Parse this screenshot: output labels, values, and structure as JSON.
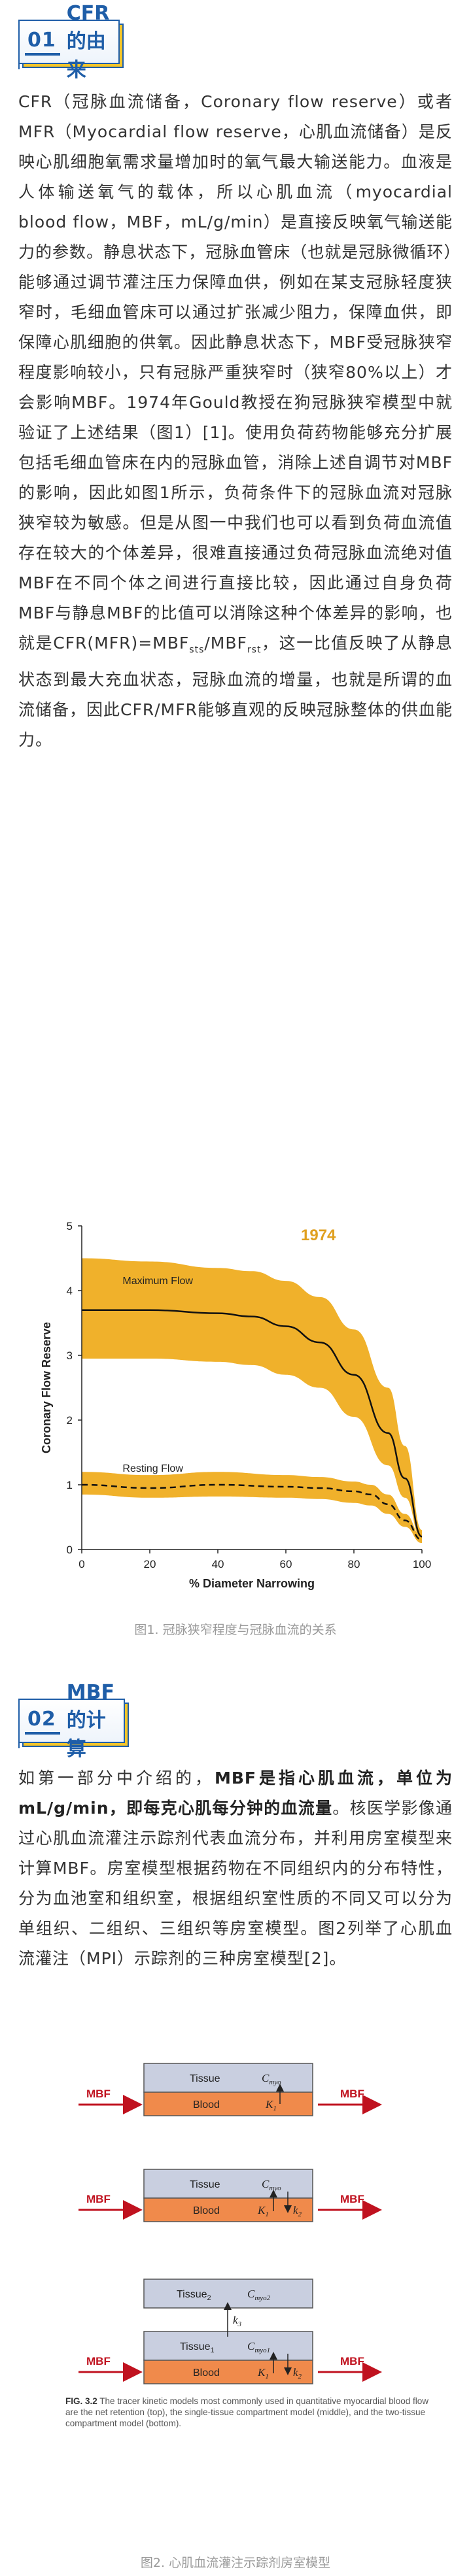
{
  "section1": {
    "number": "01",
    "title": "CFR的由来",
    "para": "CFR（冠脉血流储备，Coronary flow reserve）或者MFR（Myocardial flow reserve，心肌血流储备）是反映心肌细胞氧需求量增加时的氧气最大输送能力。血液是人体输送氧气的载体，所以心肌血流（myocardial blood flow，MBF，mL/g/min）是直接反映氧气输送能力的参数。静息状态下，冠脉血管床（也就是冠脉微循环）能够通过调节灌注压力保障血供，例如在某支冠脉轻度狭窄时，毛细血管床可以通过扩张减少阻力，保障血供，即保障心肌细胞的供氧。因此静息状态下，MBF受冠脉狭窄程度影响较小，只有冠脉严重狭窄时（狭窄80%以上）才会影响MBF。1974年Gould教授在狗冠脉狭窄模型中就验证了上述结果（图1）[1]。使用负荷药物能够充分扩展包括毛细血管床在内的冠脉血管，消除上述自调节对MBF的影响，因此如图1所示，负荷条件下的冠脉血流对冠脉狭窄较为敏感。但是从图一中我们也可以看到负荷血流值存在较大的个体差异，很难直接通过负荷冠脉血流绝对值MBF在不同个体之间进行直接比较，因此通过自身负荷MBF与静息MBF的比值可以消除这种个体差异的影响，也就是CFR(MFR)=MBF",
    "para_sub1": "sts",
    "para_mid": "/MBF",
    "para_sub2": "rst",
    "para_tail": "，这一比值反映了从静息状态到最大充血状态，冠脉血流的增量，也就是所谓的血流储备，因此CFR/MFR能够直观的反映冠脉整体的供血能力。"
  },
  "figure1": {
    "caption": "图1. 冠脉狭窄程度与冠脉血流的关系",
    "chart_data": {
      "type": "line",
      "title": "1974",
      "xlabel": "% Diameter Narrowing",
      "ylabel": "Coronary Flow Reserve",
      "xlim": [
        0,
        100
      ],
      "ylim": [
        0,
        5
      ],
      "xticks": [
        "0",
        "20",
        "40",
        "60",
        "80",
        "100"
      ],
      "yticks": [
        "0",
        "1",
        "2",
        "3",
        "4",
        "5"
      ],
      "grid": false,
      "annotations": [
        "Maximum Flow",
        "Resting Flow"
      ],
      "series": [
        {
          "name": "Maximum Flow",
          "style": "solid",
          "x": [
            0,
            20,
            40,
            50,
            60,
            70,
            80,
            90,
            95,
            100
          ],
          "y": [
            3.7,
            3.7,
            3.65,
            3.6,
            3.45,
            3.2,
            2.7,
            1.8,
            1.1,
            0.2
          ],
          "band_upper": [
            4.5,
            4.45,
            4.35,
            4.3,
            4.15,
            3.9,
            3.4,
            2.5,
            1.6,
            0.3
          ],
          "band_lower": [
            2.95,
            2.95,
            2.9,
            2.85,
            2.7,
            2.5,
            2.05,
            1.3,
            0.8,
            0.15
          ]
        },
        {
          "name": "Resting Flow",
          "style": "dashed",
          "x": [
            0,
            20,
            40,
            60,
            70,
            80,
            85,
            90,
            95,
            100
          ],
          "y": [
            1.0,
            0.95,
            1.0,
            0.97,
            0.95,
            0.9,
            0.85,
            0.7,
            0.45,
            0.15
          ],
          "band_upper": [
            1.2,
            1.15,
            1.2,
            1.15,
            1.12,
            1.05,
            1.0,
            0.85,
            0.55,
            0.2
          ],
          "band_lower": [
            0.85,
            0.8,
            0.82,
            0.8,
            0.78,
            0.72,
            0.68,
            0.55,
            0.35,
            0.1
          ]
        }
      ],
      "colors": {
        "band": "#f0b12b",
        "line": "#111111"
      }
    }
  },
  "section2": {
    "number": "02",
    "title": "MBF的计算",
    "para_lead": "如第一部分中介绍的，",
    "para_bold": "MBF是指心肌血流，单位为mL/g/min，即每克心肌每分钟的血流量",
    "para_rest": "。核医学影像通过心肌血流灌注示踪剂代表血流分布，并利用房室模型来计算MBF。房室模型根据药物在不同组织内的分布特性，分为血池室和组织室，根据组织室性质的不同又可以分为单组织、二组织、三组织等房室模型。图2列举了心肌血流灌注（MPI）示踪剂的三种房室模型[2]。"
  },
  "figure2": {
    "arrow_label": "MBF",
    "tissue": "Tissue",
    "tissue1": "Tissue",
    "tissue1_sub": "1",
    "tissue2": "Tissue",
    "tissue2_sub": "2",
    "blood": "Blood",
    "cmyo": "C",
    "cmyo_sub": "myo",
    "cmyo1_sub": "myo1",
    "cmyo2_sub": "myo2",
    "k1": "K",
    "k1_sub": "1",
    "k2": "k",
    "k2_sub": "2",
    "k3": "k",
    "k3_sub": "3",
    "fig_text_bold": "FIG. 3.2",
    "fig_text": "The tracer kinetic models most commonly used in quantitative myocardial blood flow are the net retention (top), the single-tissue compartment model (middle), and the two-tissue compartment model (bottom).",
    "caption": "图2. 心肌血流灌注示踪剂房室模型",
    "colors": {
      "tissue": "#c9cfe0",
      "blood": "#f08a4b",
      "arrow": "#c0121f"
    }
  }
}
